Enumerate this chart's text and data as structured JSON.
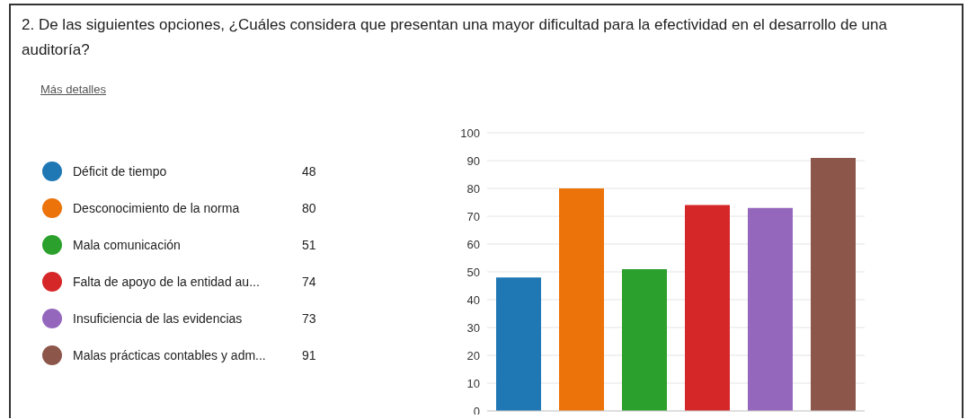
{
  "chart_data": {
    "type": "bar",
    "title": "2. De las siguientes opciones, ¿Cuáles considera que presentan una mayor dificultad para la efectividad en el desarrollo de una auditoría?",
    "annotations": [
      "Más detalles",
      "48",
      "80",
      "51",
      "74",
      "73",
      "91"
    ],
    "categories": [
      null
    ],
    "series": [
      {
        "name": "Déficit de tiempo",
        "color": "#1f77b4",
        "values": [
          48
        ]
      },
      {
        "name": "Desconocimiento de la norma",
        "color": "#eb730a",
        "values": [
          80
        ]
      },
      {
        "name": "Mala comunicación",
        "color": "#2ca02c",
        "values": [
          51
        ]
      },
      {
        "name": "Falta de apoyo de la entidad au...",
        "color": "#d62728",
        "values": [
          74
        ]
      },
      {
        "name": "Insuficiencia de las evidencias",
        "color": "#9467bd",
        "values": [
          73
        ]
      },
      {
        "name": "Malas prácticas contables y adm...",
        "color": "#8c564b",
        "values": [
          91
        ]
      }
    ],
    "ylim": [
      0,
      100
    ],
    "yticks": [
      0,
      10,
      20,
      30,
      40,
      50,
      60,
      70,
      80,
      90,
      100
    ],
    "grid": "y",
    "legend": "left"
  }
}
